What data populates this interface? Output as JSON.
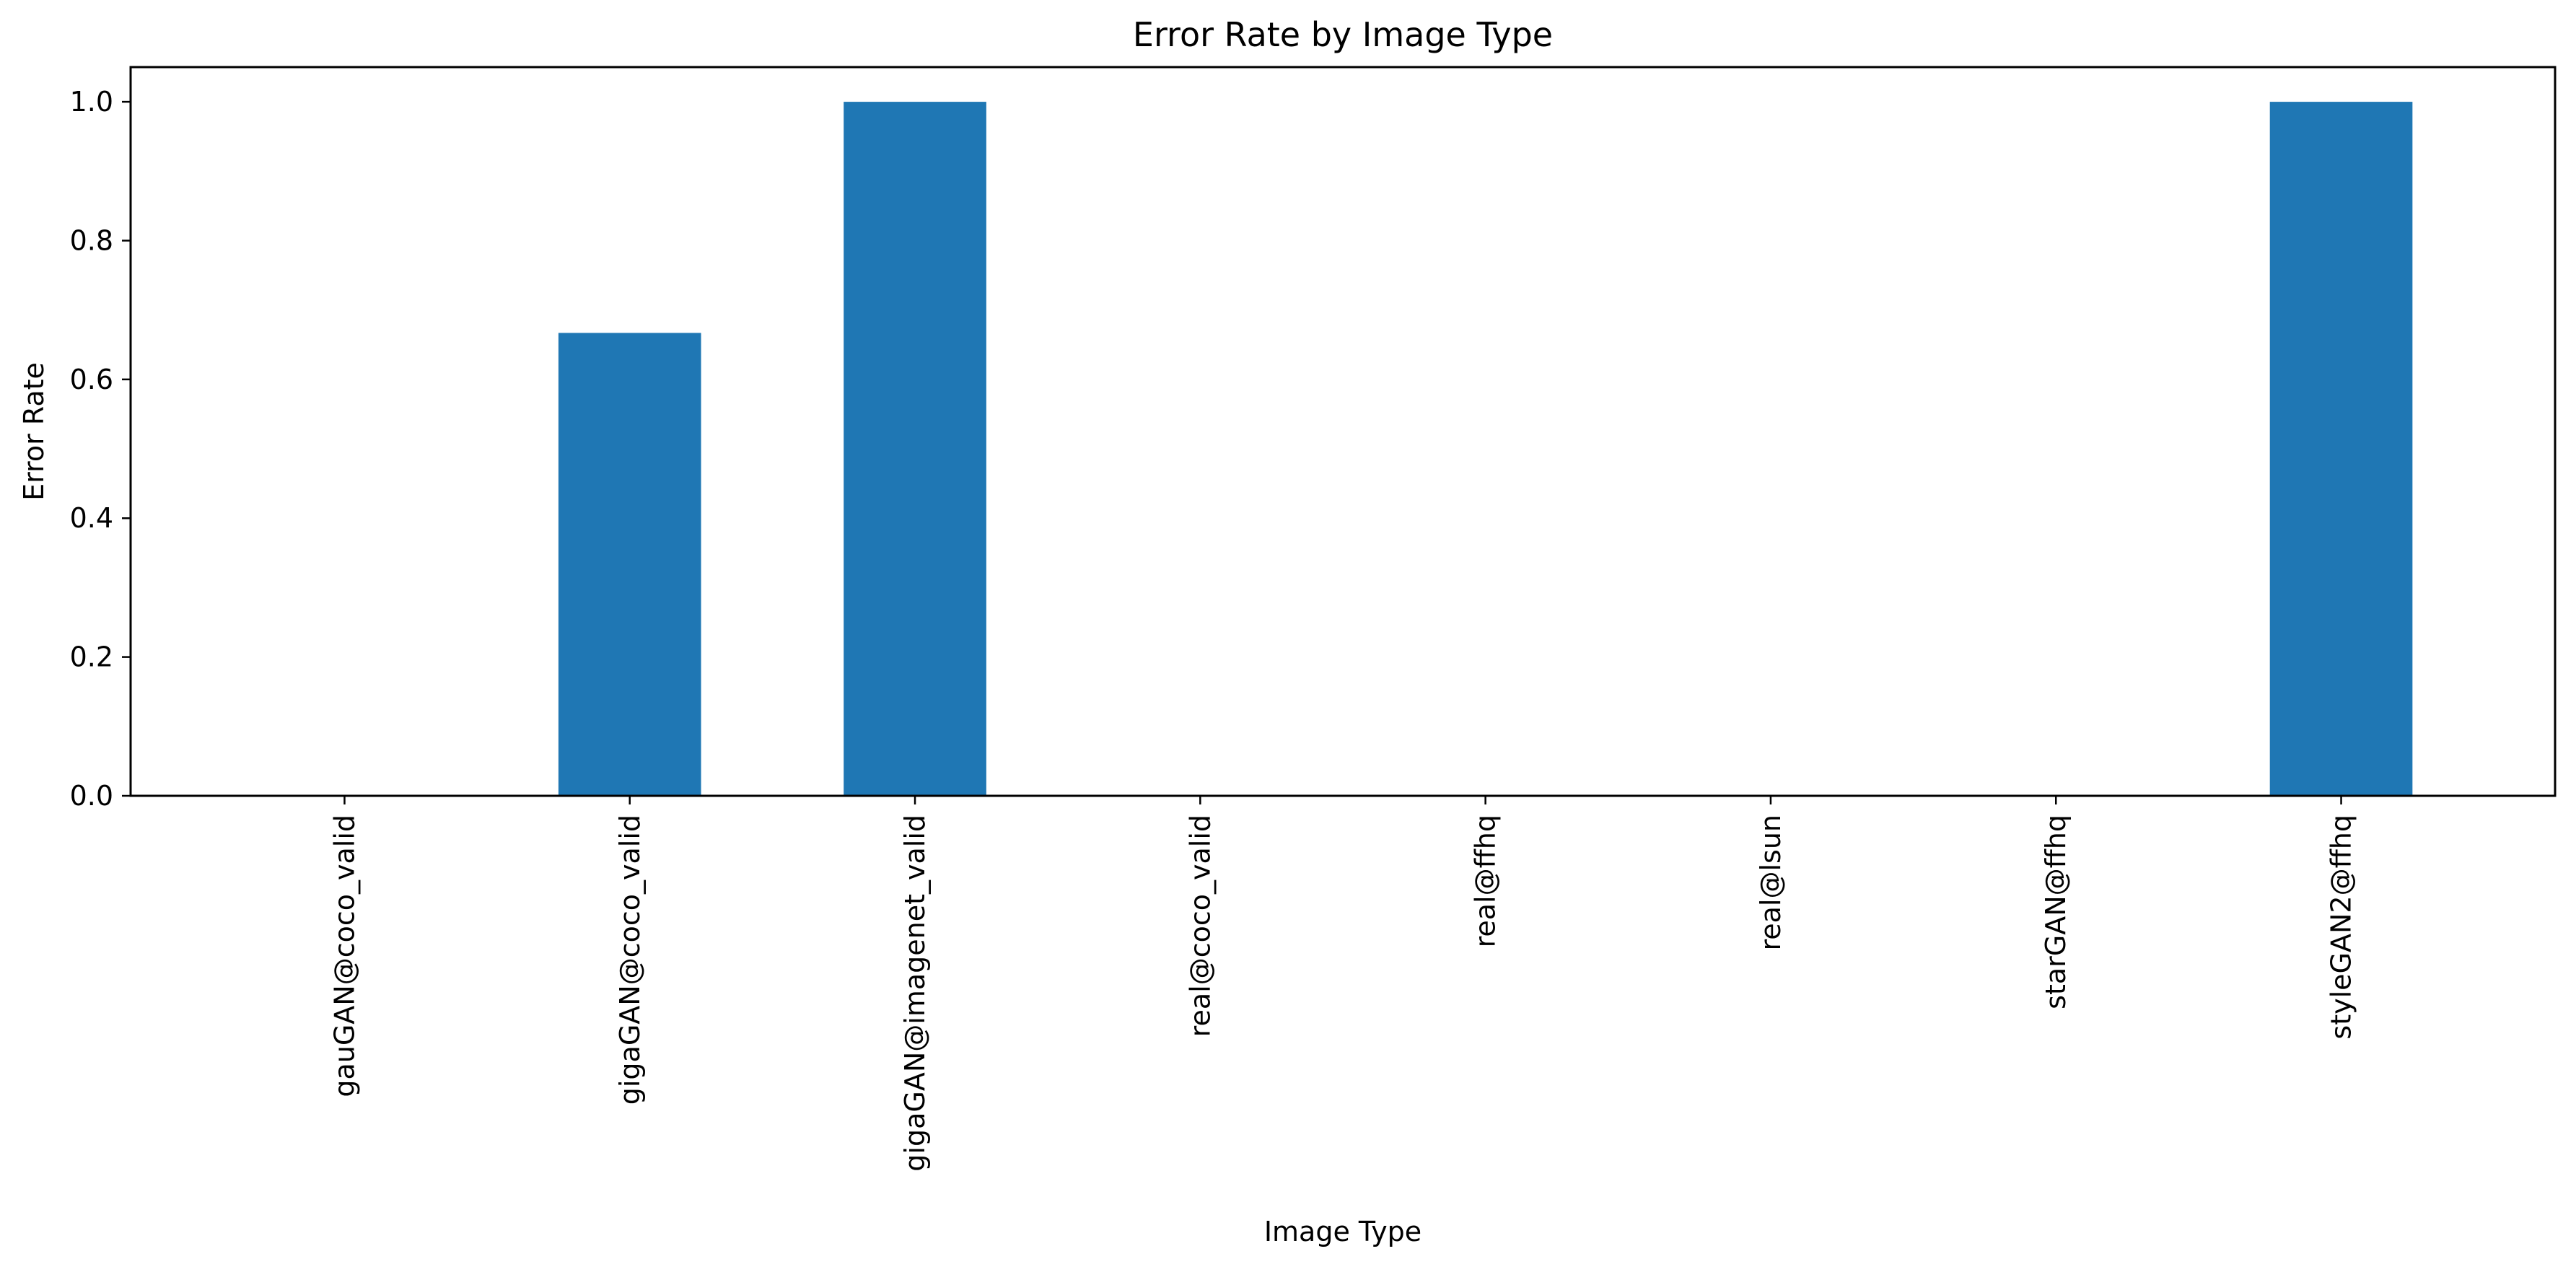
{
  "chart_data": {
    "type": "bar",
    "title": "Error Rate by Image Type",
    "xlabel": "Image Type",
    "ylabel": "Error Rate",
    "categories": [
      "gauGAN@coco_valid",
      "gigaGAN@coco_valid",
      "gigaGAN@imagenet_valid",
      "real@coco_valid",
      "real@ffhq",
      "real@lsun",
      "starGAN@ffhq",
      "styleGAN2@ffhq"
    ],
    "values": [
      0.0,
      0.667,
      1.0,
      0.0,
      0.0,
      0.0,
      0.0,
      1.0
    ],
    "ylim": [
      0,
      1.05
    ],
    "yticks": [
      0.0,
      0.2,
      0.4,
      0.6,
      0.8,
      1.0
    ],
    "ytick_labels": [
      "0.0",
      "0.2",
      "0.4",
      "0.6",
      "0.8",
      "1.0"
    ],
    "grid": false,
    "legend": "none",
    "colors": {
      "bar": "#1f77b4",
      "axis": "#000000"
    }
  }
}
